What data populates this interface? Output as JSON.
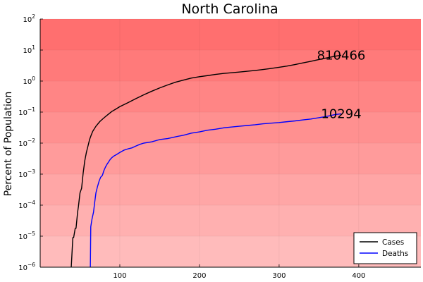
{
  "chart_data": {
    "type": "line",
    "title": "North Carolina",
    "xlabel": "",
    "ylabel": "Percent of Population",
    "xlim": [
      0,
      478
    ],
    "ylim": [
      1e-06,
      100
    ],
    "y_scale": "log",
    "grid": true,
    "legend_position": "bottom-right",
    "background_bands": [
      "#ffbbbb",
      "#ffb0b0",
      "#ffa6a6",
      "#ff9b9b",
      "#ff9090",
      "#ff8585",
      "#ff7a7a",
      "#ff6f6f"
    ],
    "x_ticks": [
      100,
      200,
      300,
      400
    ],
    "y_ticks": [
      {
        "value": 1e-06,
        "base": "10",
        "exp": "−6"
      },
      {
        "value": 1e-05,
        "base": "10",
        "exp": "−5"
      },
      {
        "value": 0.0001,
        "base": "10",
        "exp": "−4"
      },
      {
        "value": 0.001,
        "base": "10",
        "exp": "−3"
      },
      {
        "value": 0.01,
        "base": "10",
        "exp": "−2"
      },
      {
        "value": 0.1,
        "base": "10",
        "exp": "−1"
      },
      {
        "value": 1,
        "base": "10",
        "exp": "0"
      },
      {
        "value": 10,
        "base": "10",
        "exp": "1"
      },
      {
        "value": 100,
        "base": "10",
        "exp": "2"
      }
    ],
    "series": [
      {
        "name": "Cases",
        "color": "#000000",
        "x": [
          39,
          41,
          42,
          44,
          45,
          47,
          48,
          50,
          52,
          54,
          56,
          58,
          60,
          62,
          64,
          66,
          70,
          75,
          80,
          85,
          90,
          95,
          100,
          110,
          120,
          130,
          140,
          150,
          160,
          170,
          180,
          190,
          200,
          210,
          220,
          230,
          240,
          250,
          260,
          270,
          280,
          290,
          300,
          310,
          320,
          330,
          340,
          350,
          360,
          370,
          378
        ],
        "y": [
          1e-06,
          9e-06,
          9e-06,
          1.8e-05,
          1.8e-05,
          6e-05,
          9e-05,
          0.00025,
          0.00035,
          0.0011,
          0.0027,
          0.005,
          0.008,
          0.013,
          0.018,
          0.024,
          0.035,
          0.05,
          0.065,
          0.083,
          0.105,
          0.125,
          0.15,
          0.2,
          0.27,
          0.36,
          0.47,
          0.6,
          0.75,
          0.92,
          1.08,
          1.25,
          1.38,
          1.5,
          1.64,
          1.76,
          1.86,
          1.96,
          2.07,
          2.2,
          2.37,
          2.55,
          2.78,
          3.05,
          3.4,
          3.85,
          4.35,
          4.95,
          5.6,
          6.3,
          6.8
        ]
      },
      {
        "name": "Deaths",
        "color": "#0000ff",
        "x": [
          63,
          63.5,
          65,
          67,
          68,
          70,
          72,
          74,
          76,
          78,
          80,
          82,
          84,
          86,
          88,
          90,
          93,
          96,
          100,
          105,
          110,
          115,
          120,
          125,
          130,
          140,
          150,
          160,
          170,
          180,
          190,
          200,
          210,
          220,
          230,
          240,
          250,
          260,
          270,
          280,
          290,
          300,
          310,
          320,
          330,
          340,
          350,
          360,
          370,
          378
        ],
        "y": [
          1e-06,
          2e-05,
          3.5e-05,
          6e-05,
          0.0001,
          0.00025,
          0.0004,
          0.0006,
          0.0008,
          0.0009,
          0.0013,
          0.0017,
          0.0021,
          0.0025,
          0.003,
          0.0034,
          0.0039,
          0.0043,
          0.005,
          0.0059,
          0.0065,
          0.007,
          0.008,
          0.0091,
          0.01,
          0.011,
          0.013,
          0.014,
          0.016,
          0.018,
          0.021,
          0.023,
          0.026,
          0.028,
          0.031,
          0.033,
          0.035,
          0.037,
          0.039,
          0.042,
          0.044,
          0.046,
          0.049,
          0.052,
          0.056,
          0.06,
          0.066,
          0.073,
          0.083,
          0.088
        ]
      }
    ],
    "annotations": [
      {
        "text": "810466",
        "series": "Cases"
      },
      {
        "text": "10294",
        "series": "Deaths"
      }
    ]
  }
}
